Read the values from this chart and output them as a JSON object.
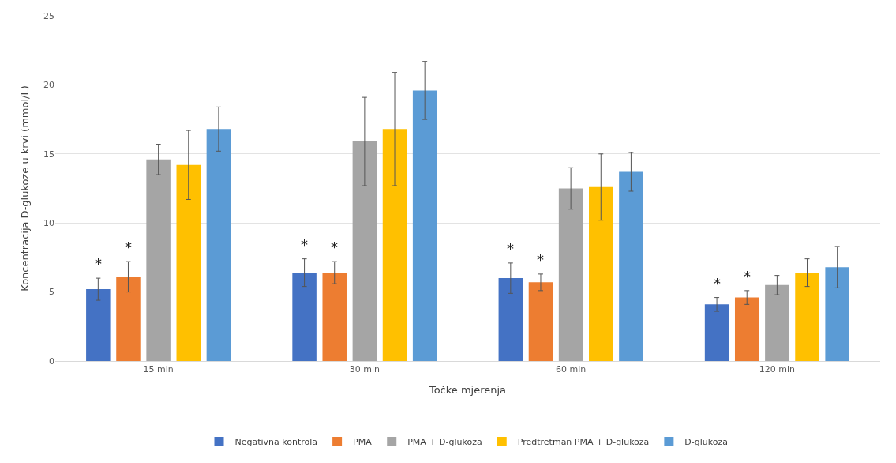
{
  "chart_data": {
    "type": "bar",
    "xlabel": "Točke mjerenja",
    "ylabel": "Koncentracija D-glukoze u krvi (mmol/L)",
    "categories": [
      "15 min",
      "30 min",
      "60 min",
      "120 min"
    ],
    "series": [
      {
        "name": "Negativna kontrola",
        "color": "#4472c4",
        "values": [
          5.2,
          6.4,
          6.0,
          4.1
        ],
        "errors": [
          0.8,
          1.0,
          1.1,
          0.5
        ],
        "value_labels": [
          "*",
          "*",
          "*",
          "*"
        ]
      },
      {
        "name": "PMA",
        "color": "#ed7d31",
        "values": [
          6.1,
          6.4,
          5.7,
          4.6
        ],
        "errors": [
          1.1,
          0.8,
          0.6,
          0.5
        ],
        "value_labels": [
          "*",
          "*",
          "*",
          "*"
        ]
      },
      {
        "name": "PMA + D-glukoza",
        "color": "#a5a5a5",
        "values": [
          14.6,
          15.9,
          12.5,
          5.5
        ],
        "errors": [
          1.1,
          3.2,
          1.5,
          0.7
        ]
      },
      {
        "name": "Predtretman PMA + D-glukoza",
        "color": "#ffc000",
        "values": [
          14.2,
          16.8,
          12.6,
          6.4
        ],
        "errors": [
          2.5,
          4.1,
          2.4,
          1.0
        ]
      },
      {
        "name": "D-glukoza",
        "color": "#5b9bd5",
        "values": [
          16.8,
          19.6,
          13.7,
          6.8
        ],
        "errors": [
          1.6,
          2.1,
          1.4,
          1.5
        ]
      }
    ],
    "ylim": [
      0,
      25
    ],
    "yticks": [
      0,
      5,
      10,
      15,
      20,
      25
    ],
    "grid": "y",
    "legend": "bottom"
  }
}
